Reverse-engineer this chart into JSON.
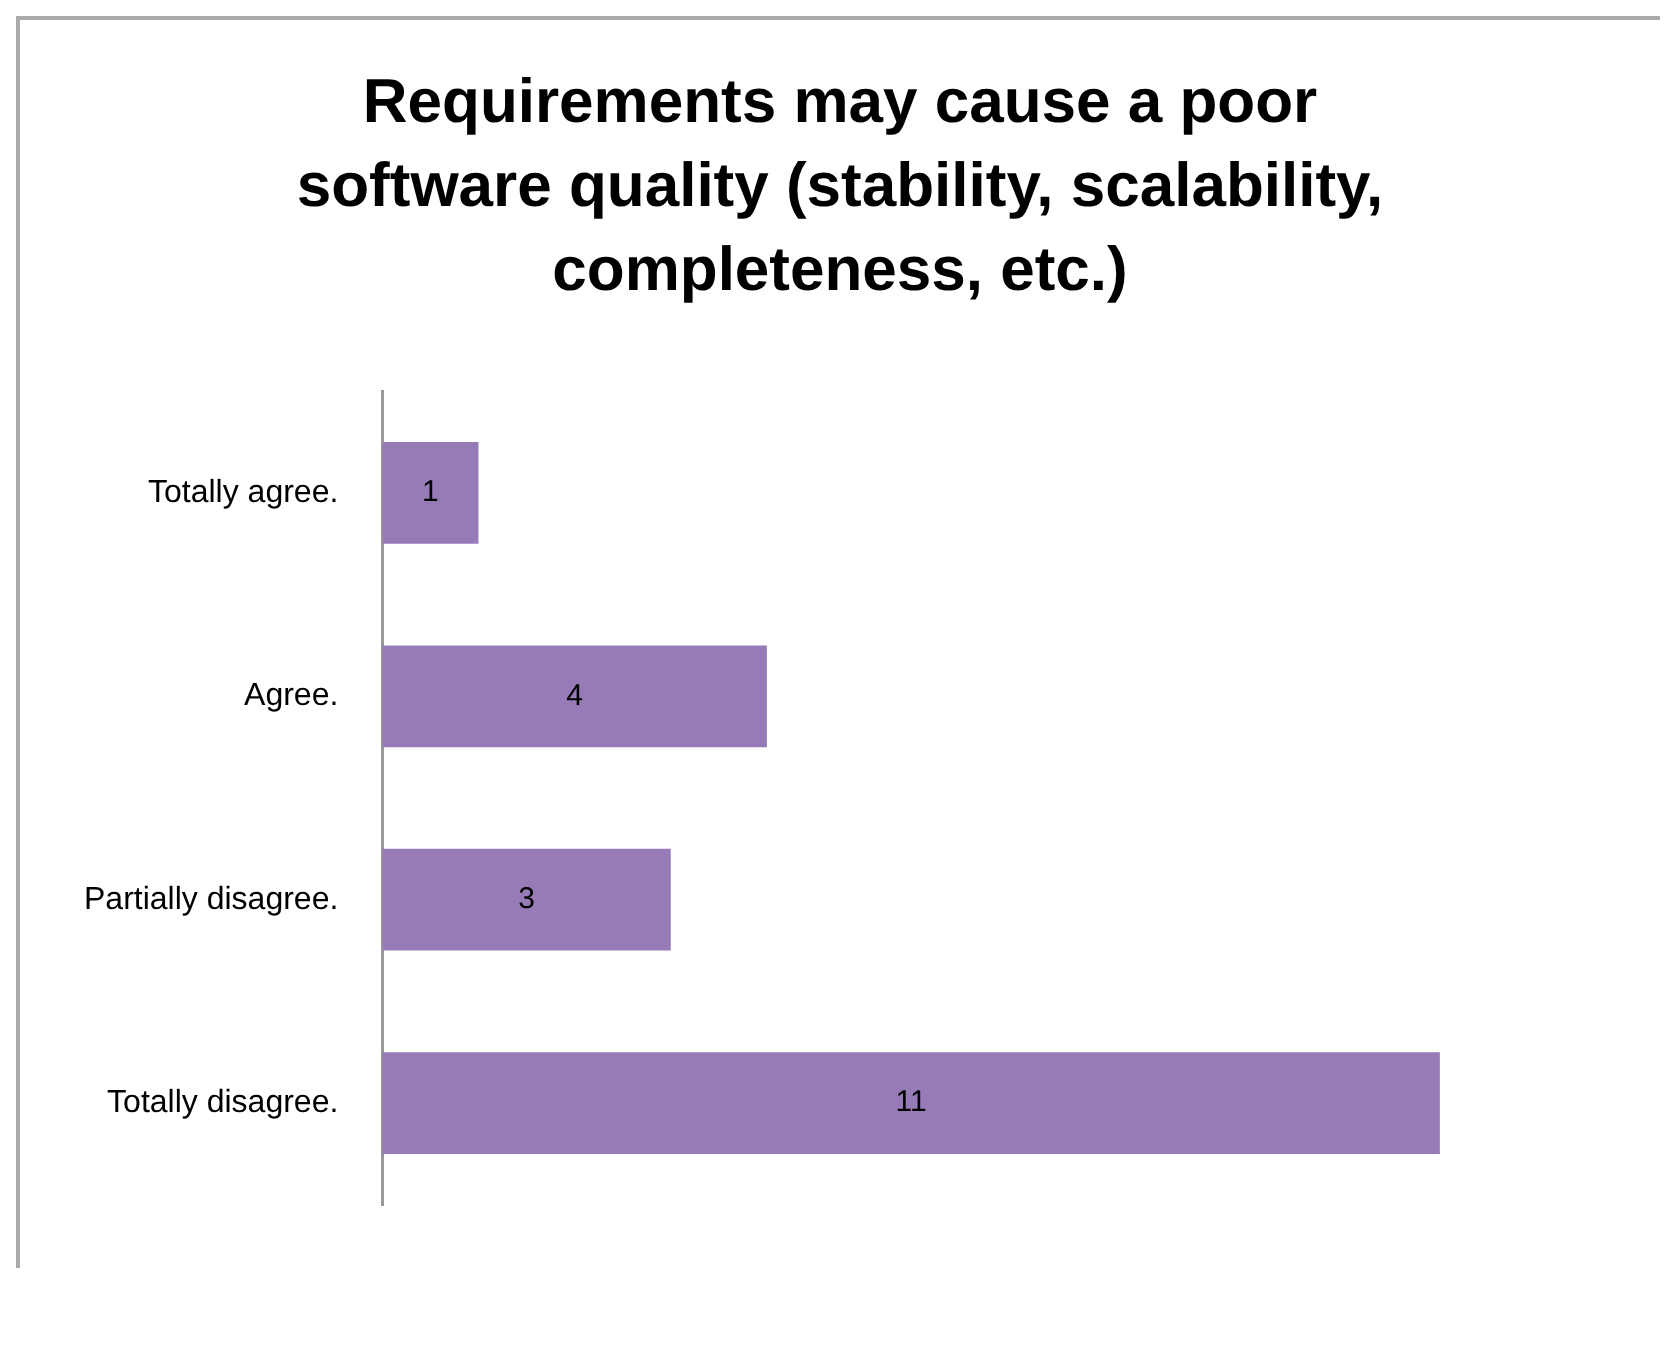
{
  "chart_data": {
    "type": "bar",
    "orientation": "horizontal",
    "title": "Requirements may cause a poor software quality (stability, scalability, completeness, etc.)",
    "categories": [
      "Totally agree.",
      "Agree.",
      "Partially disagree.",
      "Totally disagree."
    ],
    "values": [
      1,
      4,
      3,
      11
    ],
    "color": "#967bb6",
    "data_labels": true,
    "legend": false,
    "tick_labels": "y"
  }
}
